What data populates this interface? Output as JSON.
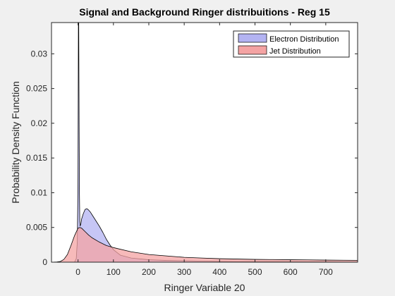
{
  "chart_data": {
    "type": "area",
    "title": "Signal and Background Ringer distribuitions - Reg 15",
    "xlabel": "Ringer Variable 20",
    "ylabel": "Probability Density Function",
    "xlim": [
      -75,
      790
    ],
    "ylim": [
      0,
      0.0345
    ],
    "xticks": [
      0,
      100,
      200,
      300,
      400,
      500,
      600,
      700
    ],
    "yticks": [
      0,
      0.005,
      0.01,
      0.015,
      0.02,
      0.025,
      0.03
    ],
    "ytick_labels": [
      "0",
      "0.005",
      "0.01",
      "0.015",
      "0.02",
      "0.025",
      "0.03"
    ],
    "grid": false,
    "legend_position": "top-right",
    "series": [
      {
        "name": "Electron Distribution",
        "fill": "#b3b3f2",
        "stroke": "#000000",
        "x": [
          -75,
          -10,
          -5,
          -2,
          0,
          1,
          2,
          3,
          4,
          5,
          6,
          8,
          10,
          15,
          20,
          25,
          30,
          35,
          40,
          50,
          60,
          70,
          80,
          90,
          100,
          120,
          150,
          200,
          250,
          300,
          350,
          400,
          450,
          500,
          550,
          600,
          650,
          700,
          750,
          790
        ],
        "y": [
          0,
          0,
          0.0005,
          0.003,
          0.012,
          0.0345,
          0.0345,
          0.02,
          0.01,
          0.0058,
          0.0052,
          0.0055,
          0.0062,
          0.007,
          0.0076,
          0.0077,
          0.0075,
          0.0072,
          0.0068,
          0.006,
          0.0052,
          0.0043,
          0.0033,
          0.0025,
          0.0018,
          0.001,
          0.0006,
          0.00035,
          0.00025,
          0.0002,
          0.00015,
          0.00012,
          0.0001,
          9e-05,
          8e-05,
          7e-05,
          6e-05,
          5e-05,
          4e-05,
          4e-05
        ]
      },
      {
        "name": "Jet Distribution",
        "fill": "#f4a3a3",
        "stroke": "#000000",
        "x": [
          -75,
          -60,
          -50,
          -40,
          -30,
          -20,
          -10,
          0,
          5,
          10,
          20,
          30,
          40,
          60,
          80,
          100,
          150,
          200,
          250,
          300,
          350,
          400,
          450,
          500,
          550,
          600,
          650,
          700,
          750,
          790
        ],
        "y": [
          0,
          3e-05,
          0.0001,
          0.0004,
          0.0011,
          0.0024,
          0.0038,
          0.0049,
          0.005,
          0.0049,
          0.0044,
          0.0039,
          0.0035,
          0.0029,
          0.0024,
          0.0021,
          0.0015,
          0.0011,
          0.0009,
          0.0007,
          0.0006,
          0.0005,
          0.00045,
          0.0004,
          0.00038,
          0.00035,
          0.00033,
          0.0003,
          0.00028,
          0.00027
        ]
      }
    ]
  }
}
